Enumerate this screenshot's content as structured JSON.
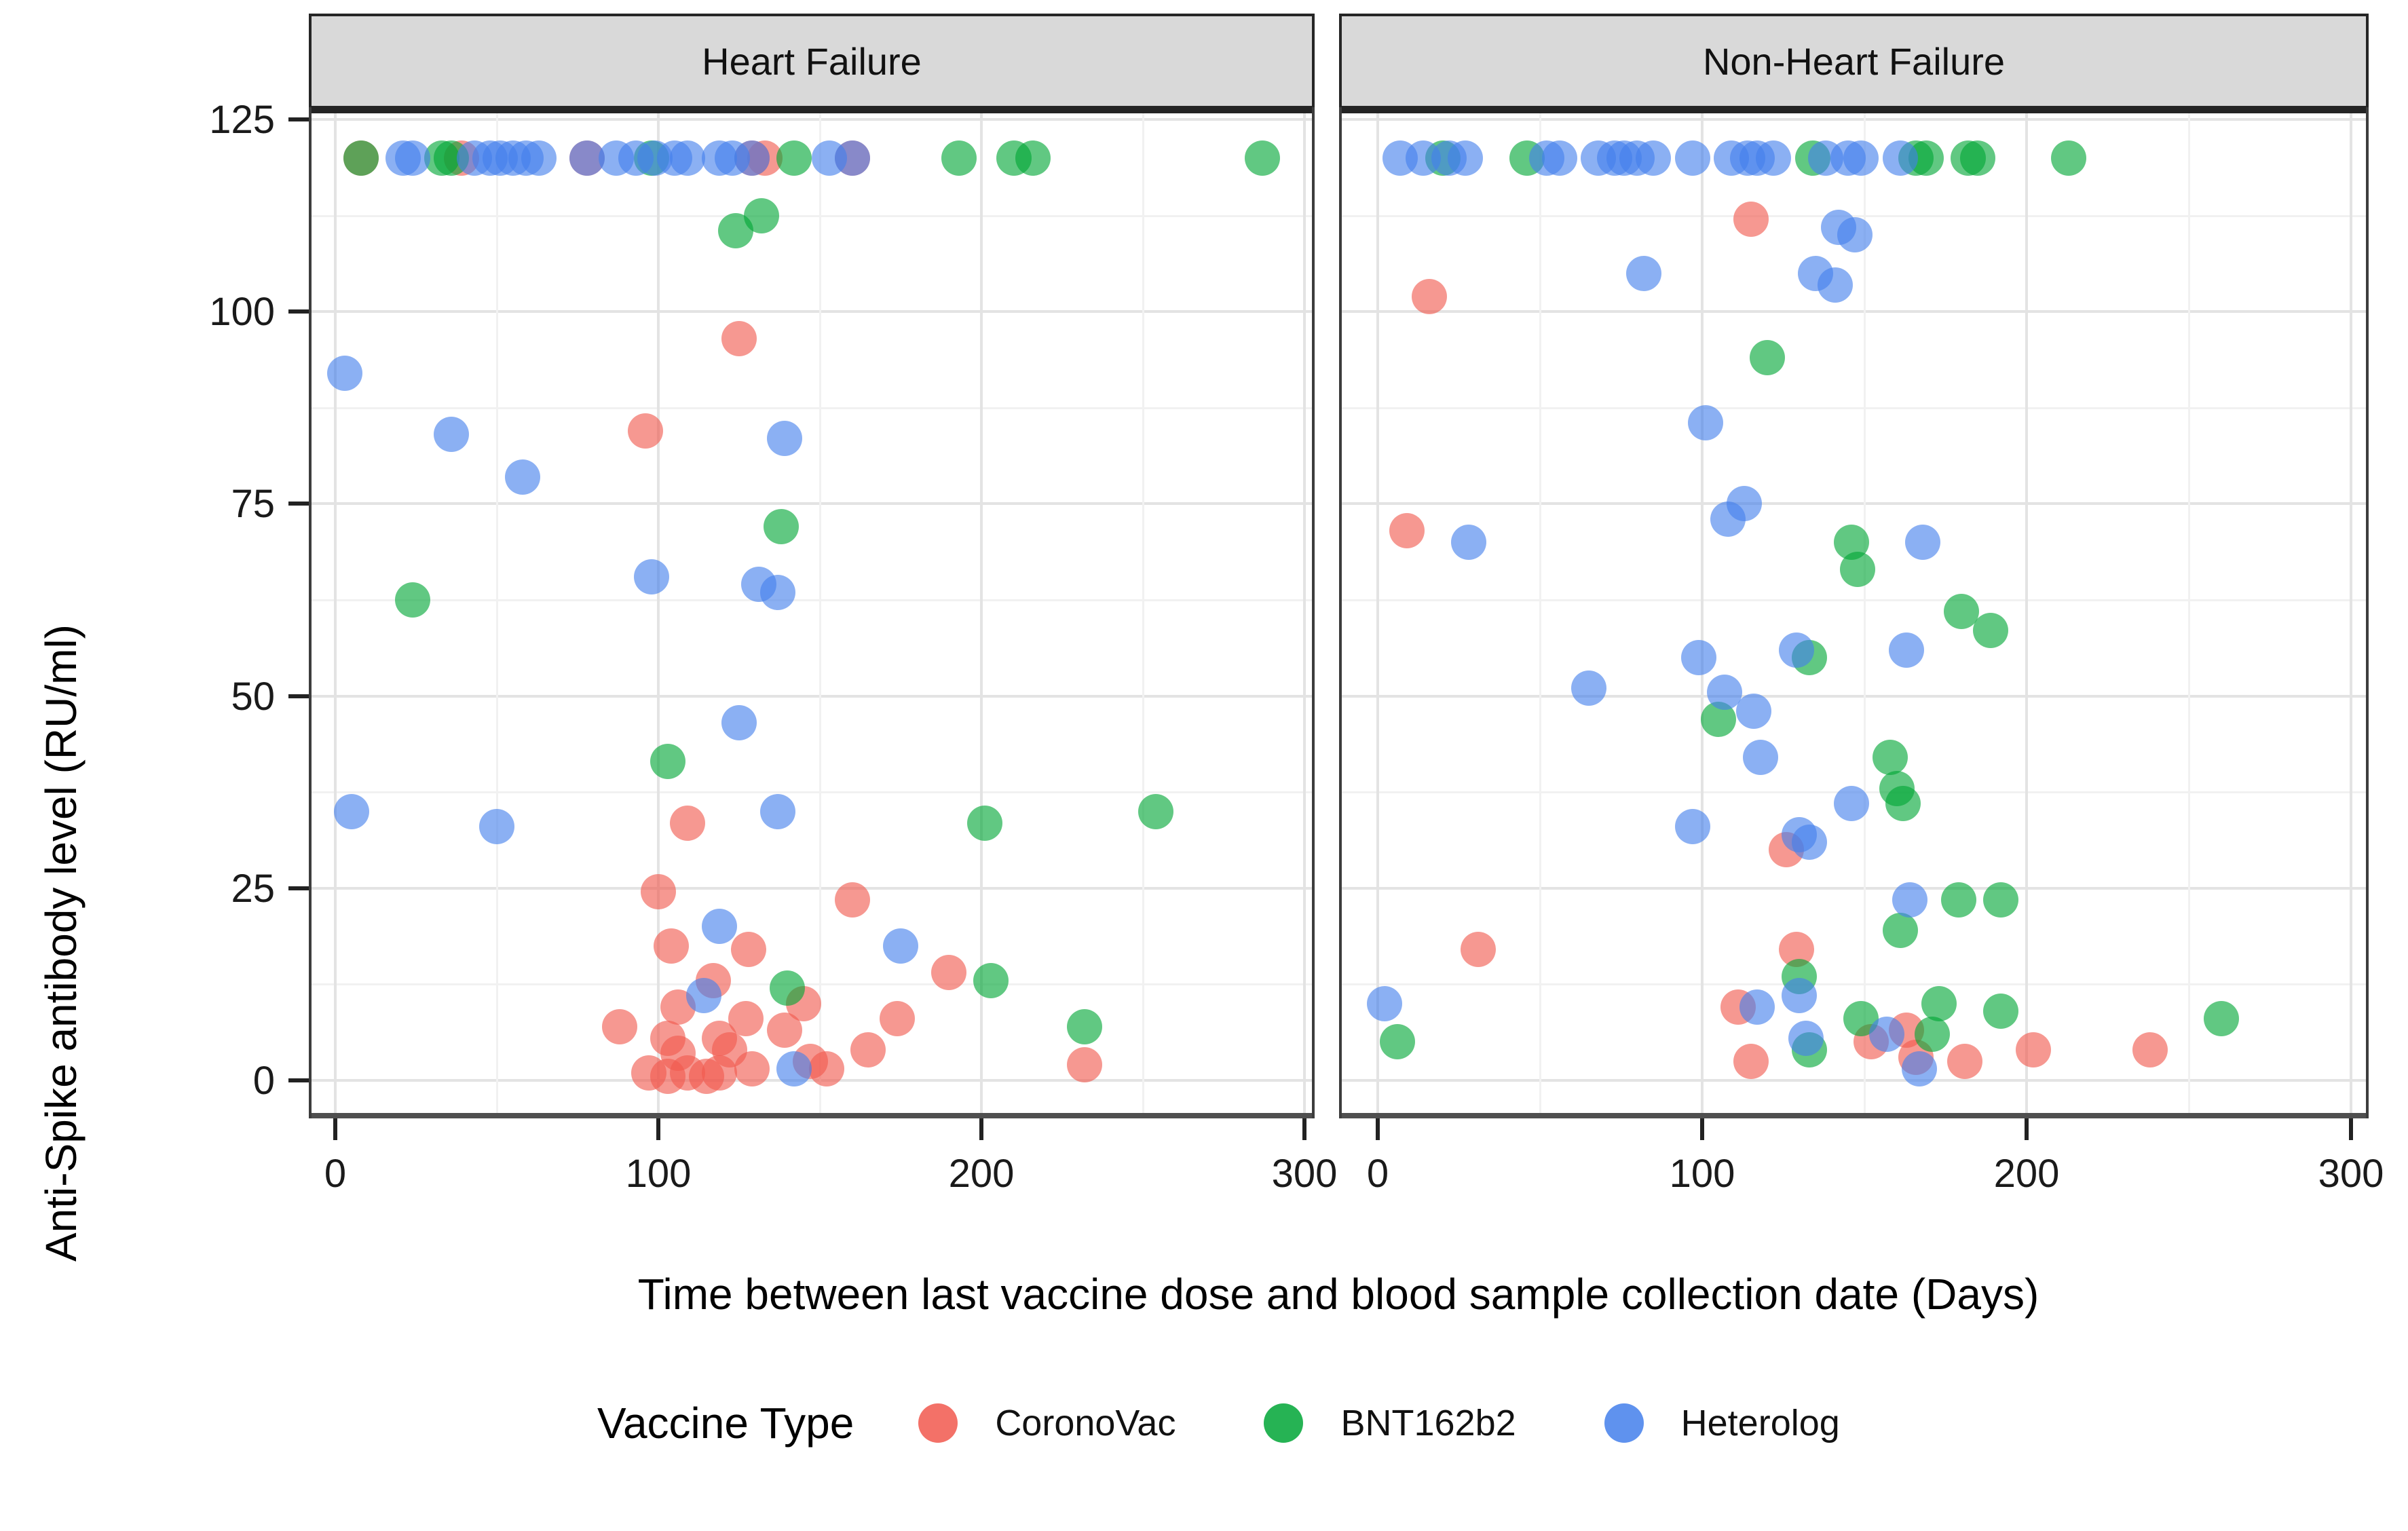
{
  "colors": {
    "coronovac": "#F1584E",
    "bnt162b2": "#00A636",
    "heterolog": "#437FEB",
    "strip_background": "#D9D9D9",
    "gridline_major": "#E3E3E3",
    "gridline_minor": "#F1F1F1"
  },
  "chart_data": {
    "type": "scatter",
    "title": "",
    "xlabel": "Time between last vaccine dose and blood sample collection date (Days)",
    "ylabel": "Anti-Spike antibody level (RU/ml)",
    "xlim": [
      -8,
      304
    ],
    "ylim": [
      -5,
      126.5
    ],
    "xticks": [
      0,
      100,
      200,
      300
    ],
    "yticks": [
      125,
      100,
      75,
      50,
      25,
      0
    ],
    "grid": "major-and-minor",
    "legend": {
      "title": "Vaccine Type",
      "position": "bottom",
      "entries": [
        {
          "label": "CoronoVac",
          "color": "#F1584E"
        },
        {
          "label": "BNT162b2",
          "color": "#00A636"
        },
        {
          "label": "Heterolog",
          "color": "#437FEB"
        }
      ]
    },
    "panels": [
      {
        "label": "Heart Failure",
        "series": [
          {
            "name": "CoronoVac",
            "color": "#F1584E",
            "points": [
              [
                8,
                120
              ],
              [
                39,
                120
              ],
              [
                78,
                120
              ],
              [
                129,
                120
              ],
              [
                133,
                120
              ],
              [
                160,
                120
              ],
              [
                125,
                96.5
              ],
              [
                96,
                84.5
              ],
              [
                109,
                33.5
              ],
              [
                100,
                24.5
              ],
              [
                160,
                23.5
              ],
              [
                104,
                17.5
              ],
              [
                128,
                17
              ],
              [
                190,
                14
              ],
              [
                117,
                13
              ],
              [
                145,
                10
              ],
              [
                106,
                9.5
              ],
              [
                127,
                8
              ],
              [
                174,
                8
              ],
              [
                88,
                7
              ],
              [
                139,
                6.5
              ],
              [
                103,
                5.5
              ],
              [
                119,
                5.5
              ],
              [
                165,
                4
              ],
              [
                122,
                4
              ],
              [
                106,
                3.5
              ],
              [
                147,
                2.5
              ],
              [
                232,
                2
              ],
              [
                152,
                1.5
              ],
              [
                129,
                1.5
              ],
              [
                119,
                1
              ],
              [
                109,
                1
              ],
              [
                97,
                1
              ],
              [
                103,
                0.5
              ],
              [
                115,
                0.5
              ]
            ]
          },
          {
            "name": "BNT162b2",
            "color": "#00A636",
            "points": [
              [
                8,
                120
              ],
              [
                33,
                120
              ],
              [
                36,
                120
              ],
              [
                98,
                120
              ],
              [
                142,
                120
              ],
              [
                193,
                120
              ],
              [
                210,
                120
              ],
              [
                216,
                120
              ],
              [
                287,
                120
              ],
              [
                132,
                112.5
              ],
              [
                124,
                110.5
              ],
              [
                138,
                72
              ],
              [
                24,
                62.5
              ],
              [
                103,
                41.5
              ],
              [
                254,
                35
              ],
              [
                201,
                33.5
              ],
              [
                203,
                13
              ],
              [
                140,
                12
              ],
              [
                232,
                7
              ]
            ]
          },
          {
            "name": "Heterolog",
            "color": "#437FEB",
            "points": [
              [
                21,
                120
              ],
              [
                24,
                120
              ],
              [
                43,
                120
              ],
              [
                48,
                120
              ],
              [
                51,
                120
              ],
              [
                55,
                120
              ],
              [
                59,
                120
              ],
              [
                63,
                120
              ],
              [
                78,
                120
              ],
              [
                87,
                120
              ],
              [
                93,
                120
              ],
              [
                99,
                120
              ],
              [
                105,
                120
              ],
              [
                109,
                120
              ],
              [
                119,
                120
              ],
              [
                123,
                120
              ],
              [
                129,
                120
              ],
              [
                153,
                120
              ],
              [
                160,
                120
              ],
              [
                3,
                92
              ],
              [
                36,
                84
              ],
              [
                139,
                83.5
              ],
              [
                58,
                78.5
              ],
              [
                98,
                65.5
              ],
              [
                131,
                64.5
              ],
              [
                137,
                63.5
              ],
              [
                125,
                46.5
              ],
              [
                5,
                35
              ],
              [
                137,
                35
              ],
              [
                50,
                33
              ],
              [
                119,
                20
              ],
              [
                175,
                17.5
              ],
              [
                114,
                11
              ],
              [
                142,
                1.5
              ]
            ]
          }
        ]
      },
      {
        "label": "Non-Heart Failure",
        "series": [
          {
            "name": "CoronoVac",
            "color": "#F1584E",
            "points": [
              [
                115,
                112
              ],
              [
                16,
                102
              ],
              [
                9,
                71.5
              ],
              [
                126,
                30
              ],
              [
                31,
                17
              ],
              [
                129,
                17
              ],
              [
                111,
                9.5
              ],
              [
                163,
                6.5
              ],
              [
                152,
                5
              ],
              [
                202,
                4
              ],
              [
                238,
                4
              ],
              [
                166,
                3
              ],
              [
                181,
                2.5
              ],
              [
                115,
                2.5
              ]
            ]
          },
          {
            "name": "BNT162b2",
            "color": "#00A636",
            "points": [
              [
                20,
                120
              ],
              [
                46,
                120
              ],
              [
                134,
                120
              ],
              [
                166,
                120
              ],
              [
                169,
                120
              ],
              [
                182,
                120
              ],
              [
                185,
                120
              ],
              [
                213,
                120
              ],
              [
                120,
                94
              ],
              [
                146,
                70
              ],
              [
                148,
                66.5
              ],
              [
                180,
                61
              ],
              [
                189,
                58.5
              ],
              [
                133,
                55
              ],
              [
                105,
                47
              ],
              [
                158,
                42
              ],
              [
                160,
                38
              ],
              [
                162,
                36
              ],
              [
                179,
                23.5
              ],
              [
                192,
                23.5
              ],
              [
                161,
                19.5
              ],
              [
                130,
                13.5
              ],
              [
                173,
                10
              ],
              [
                192,
                9
              ],
              [
                149,
                8
              ],
              [
                260,
                8
              ],
              [
                171,
                6
              ],
              [
                6,
                5
              ],
              [
                133,
                4
              ]
            ]
          },
          {
            "name": "Heterolog",
            "color": "#437FEB",
            "points": [
              [
                7,
                120
              ],
              [
                14,
                120
              ],
              [
                22,
                120
              ],
              [
                27,
                120
              ],
              [
                52,
                120
              ],
              [
                56,
                120
              ],
              [
                68,
                120
              ],
              [
                73,
                120
              ],
              [
                76,
                120
              ],
              [
                80,
                120
              ],
              [
                85,
                120
              ],
              [
                97,
                120
              ],
              [
                109,
                120
              ],
              [
                114,
                120
              ],
              [
                117,
                120
              ],
              [
                122,
                120
              ],
              [
                138,
                120
              ],
              [
                145,
                120
              ],
              [
                149,
                120
              ],
              [
                161,
                120
              ],
              [
                142,
                111
              ],
              [
                147,
                110
              ],
              [
                135,
                105
              ],
              [
                141,
                103.5
              ],
              [
                82,
                105
              ],
              [
                101,
                85.5
              ],
              [
                113,
                75
              ],
              [
                108,
                73
              ],
              [
                28,
                70
              ],
              [
                168,
                70
              ],
              [
                163,
                56
              ],
              [
                129,
                56
              ],
              [
                99,
                55
              ],
              [
                65,
                51
              ],
              [
                107,
                50.5
              ],
              [
                116,
                48
              ],
              [
                118,
                42
              ],
              [
                146,
                36
              ],
              [
                97,
                33
              ],
              [
                130,
                32
              ],
              [
                133,
                31
              ],
              [
                164,
                23.5
              ],
              [
                2,
                10
              ],
              [
                130,
                11
              ],
              [
                117,
                9.5
              ],
              [
                157,
                6
              ],
              [
                132,
                5.5
              ],
              [
                167,
                1.5
              ]
            ]
          }
        ]
      }
    ]
  }
}
